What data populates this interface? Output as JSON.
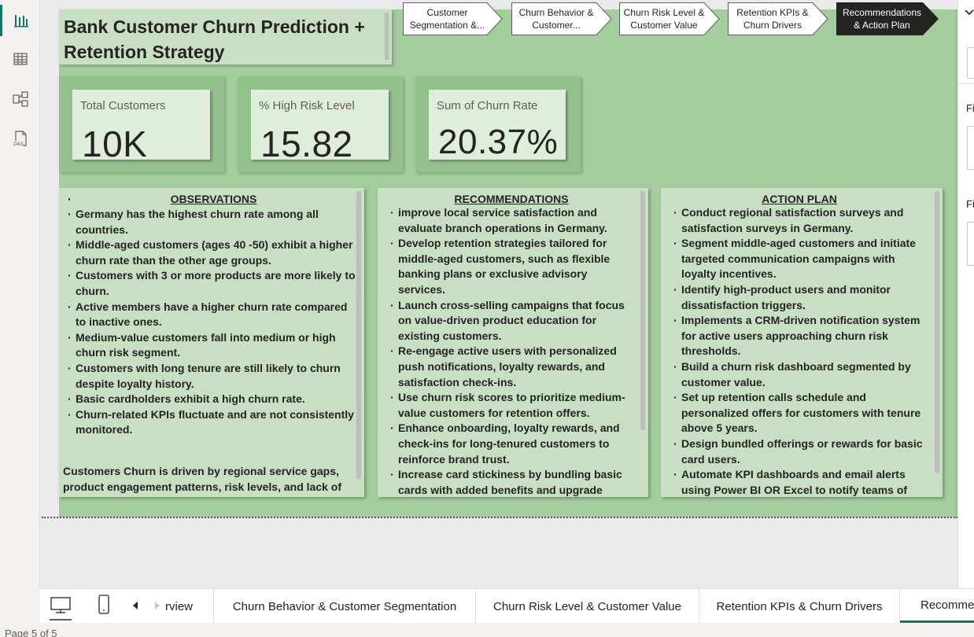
{
  "report": {
    "title": "Bank Customer Churn Prediction + Retention Strategy"
  },
  "nav_buttons": [
    {
      "label_line1": "Customer",
      "label_line2": "Segmentation &...",
      "active": false
    },
    {
      "label_line1": "Churn Behavior &",
      "label_line2": "Customer...",
      "active": false
    },
    {
      "label_line1": "Churn Risk Level &",
      "label_line2": "Customer Value",
      "active": false
    },
    {
      "label_line1": "Retention KPIs &",
      "label_line2": "Churn Drivers",
      "active": false
    },
    {
      "label_line1": "Recommendations",
      "label_line2": "& Action Plan",
      "active": true
    }
  ],
  "kpis": [
    {
      "label": "Total Customers",
      "value": "10K"
    },
    {
      "label": "% High Risk Level",
      "value": "15.82"
    },
    {
      "label": "Sum of Churn Rate",
      "value": "20.37%"
    }
  ],
  "observations": {
    "heading": "OBSERVATIONS",
    "items": [
      "Germany has the highest churn rate among all countries.",
      "Middle-aged customers (ages 40 -50) exhibit a higher churn rate than the other age groups.",
      "Customers with 3 or more products are more likely to churn.",
      "Active members have a higher churn rate compared to inactive ones.",
      "Medium-value customers fall into medium or high churn risk segment.",
      "Customers with long tenure are still likely to churn despite loyalty history.",
      "Basic cardholders exhibit a high churn rate.",
      "Churn-related KPIs fluctuate and are not consistently monitored."
    ],
    "summary": "Customers Churn is driven by regional service gaps, product engagement patterns, risk levels, and lack of"
  },
  "recommendations": {
    "heading": "RECOMMENDATIONS",
    "items": [
      "improve local service satisfaction and evaluate branch operations in Germany.",
      "Develop retention strategies tailored for middle-aged customers, such as flexible banking plans or exclusive advisory services.",
      "Launch cross-selling campaigns that focus on value-driven product education for existing customers.",
      "Re-engage active users with personalized push notifications, loyalty rewards, and satisfaction check-ins.",
      "Use churn risk scores to prioritize medium-value customers for retention offers.",
      "Enhance onboarding, loyalty rewards, and check-ins for long-tenured customers to reinforce brand trust.",
      "Increase card stickiness by bundling basic cards with added benefits and upgrade options."
    ]
  },
  "action_plan": {
    "heading": "ACTION PLAN",
    "items": [
      "Conduct regional satisfaction surveys and satisfaction surveys in Germany.",
      "Segment middle-aged customers and initiate targeted communication campaigns with loyalty incentives.",
      "Identify high-product users and monitor dissatisfaction triggers.",
      "Implements a CRM-driven notification system for active users approaching churn risk thresholds.",
      "Build a churn risk dashboard segmented by customer value.",
      "Set up retention calls schedule and personalized offers for customers with tenure above 5 years.",
      "Design bundled offerings or rewards for basic card users.",
      "Automate KPI dashboards and email alerts using Power BI OR Excel to notify teams of"
    ]
  },
  "right_pane": {
    "filter_label_1": "Fi",
    "filter_label_2": "Fi"
  },
  "page_tabs": [
    {
      "label": "rview"
    },
    {
      "label": "Churn Behavior & Customer Segmentation"
    },
    {
      "label": "Churn Risk Level & Customer Value"
    },
    {
      "label": "Retention KPIs & Churn Drivers"
    },
    {
      "label": "Recomme",
      "active": true
    }
  ],
  "status": {
    "page_indicator": "Page 5 of 5"
  },
  "colors": {
    "page_background": "#a3cd9d",
    "card_background": "#c9dfc3",
    "accent": "#117865",
    "active_nav": "#252423"
  },
  "icons": {
    "left_bar": [
      "report-view-icon",
      "table-view-icon",
      "model-view-icon",
      "dax-query-icon"
    ],
    "tab_bar": [
      "desktop-layout-icon",
      "mobile-layout-icon",
      "prev-page-icon",
      "next-page-icon"
    ]
  }
}
